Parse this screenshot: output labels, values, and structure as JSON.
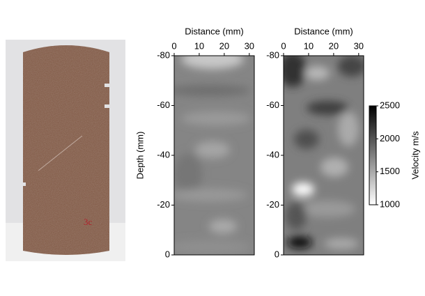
{
  "photo": {
    "label": "3c"
  },
  "chart_data": [
    {
      "type": "image",
      "x_label": "Distance (mm)",
      "y_label": "Depth (mm)",
      "xlim": [
        0,
        32
      ],
      "xticks": [
        0,
        10,
        20,
        30
      ],
      "ylim": [
        0,
        -80
      ],
      "yticks": [
        -80,
        -60,
        -40,
        -20,
        0
      ]
    },
    {
      "type": "image",
      "x_label": "Distance (mm)",
      "xlim": [
        0,
        32
      ],
      "xticks": [
        0,
        10,
        20,
        30
      ],
      "ylim": [
        0,
        -80
      ],
      "yticks": [
        -80,
        -60,
        -40,
        -20,
        0
      ]
    },
    {
      "type": "colorbar",
      "label": "Velocity m/s",
      "colors": [
        "#ffffff",
        "#000000"
      ],
      "ylim": [
        1000,
        2500
      ],
      "yticks": [
        1000,
        1500,
        2000,
        2500
      ]
    }
  ]
}
